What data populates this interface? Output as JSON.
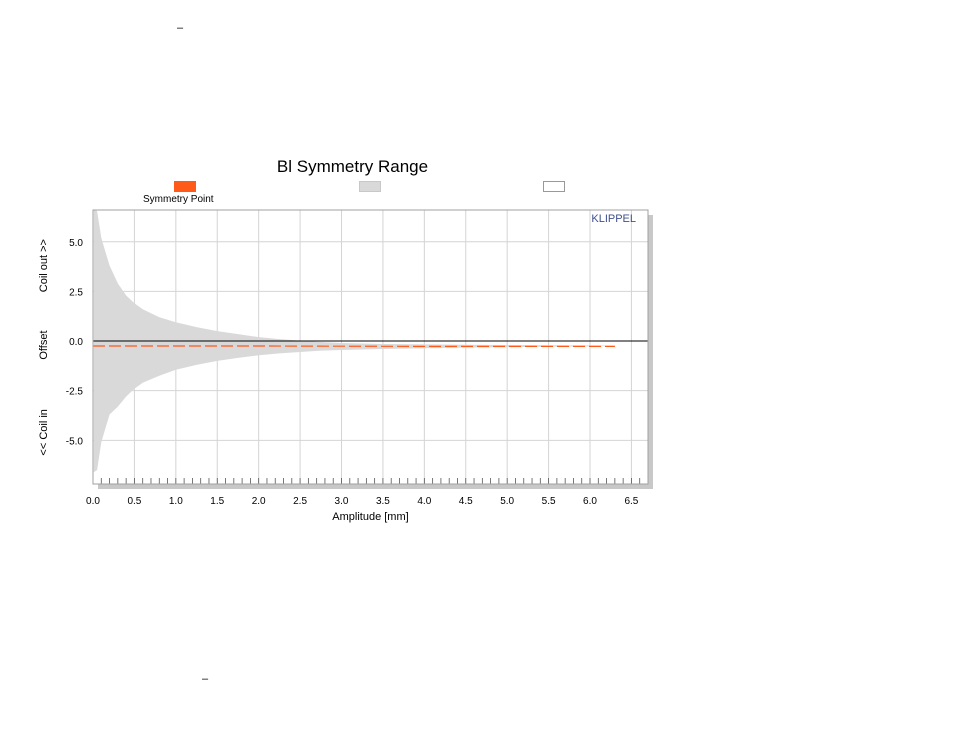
{
  "page": {
    "top_dash": "–",
    "bottom_dash": "–"
  },
  "chart_data": {
    "type": "area",
    "title": "Bl Symmetry Range",
    "xlabel": "Amplitude [mm]",
    "ylabel_parts": [
      "<< Coil in",
      "Offset",
      "Coil out >>"
    ],
    "watermark": "KLIPPEL",
    "xlim": [
      0.0,
      6.7
    ],
    "ylim": [
      -7.2,
      6.6
    ],
    "x_ticks": [
      0.0,
      0.5,
      1.0,
      1.5,
      2.0,
      2.5,
      3.0,
      3.5,
      4.0,
      4.5,
      5.0,
      5.5,
      6.0,
      6.5
    ],
    "x_tick_labels": [
      "0.0",
      "0.5",
      "1.0",
      "1.5",
      "2.0",
      "2.5",
      "3.0",
      "3.5",
      "4.0",
      "4.5",
      "5.0",
      "5.5",
      "6.0",
      "6.5"
    ],
    "y_ticks": [
      5.0,
      2.5,
      0.0,
      -2.5,
      -5.0
    ],
    "y_tick_labels": [
      "5.0",
      "2.5",
      "0.0",
      "-2.5",
      "-5.0"
    ],
    "grid": true,
    "legend": {
      "placement": "top",
      "entries": [
        {
          "label": "Symmetry Point",
          "color": "#ff5a1a",
          "border": "#ff5a1a"
        },
        {
          "label": "",
          "color": "#d9d9d9",
          "border": "#c8c8c8"
        },
        {
          "label": "",
          "color": "#ffffff",
          "border": "#999999"
        }
      ]
    },
    "range_upper": {
      "x": [
        0.01,
        0.05,
        0.1,
        0.15,
        0.2,
        0.3,
        0.4,
        0.5,
        0.6,
        0.8,
        1.0,
        1.25,
        1.5,
        1.75,
        2.0,
        2.25,
        2.5,
        2.75,
        3.0,
        3.5,
        4.0,
        4.5,
        5.0,
        5.5,
        6.0,
        6.3
      ],
      "y": [
        6.6,
        6.55,
        5.2,
        4.5,
        3.8,
        2.9,
        2.3,
        1.9,
        1.6,
        1.2,
        0.95,
        0.7,
        0.5,
        0.35,
        0.2,
        0.1,
        0.02,
        -0.05,
        -0.1,
        -0.15,
        -0.17,
        -0.19,
        -0.2,
        -0.21,
        -0.22,
        -0.23
      ]
    },
    "range_lower": {
      "x": [
        0.01,
        0.05,
        0.1,
        0.15,
        0.2,
        0.3,
        0.4,
        0.5,
        0.6,
        0.8,
        1.0,
        1.25,
        1.5,
        1.75,
        2.0,
        2.25,
        2.5,
        2.75,
        3.0,
        3.5,
        4.0,
        4.5,
        5.0,
        5.5,
        6.0,
        6.3
      ],
      "y": [
        -6.6,
        -6.5,
        -5.1,
        -4.4,
        -3.7,
        -3.3,
        -2.8,
        -2.4,
        -2.1,
        -1.75,
        -1.45,
        -1.2,
        -1.0,
        -0.85,
        -0.72,
        -0.62,
        -0.55,
        -0.48,
        -0.45,
        -0.4,
        -0.36,
        -0.33,
        -0.31,
        -0.29,
        -0.27,
        -0.25
      ]
    },
    "symmetry_point": {
      "x": [
        0.0,
        1.0,
        2.0,
        3.0,
        4.0,
        5.0,
        6.0,
        6.3
      ],
      "y": [
        -0.25,
        -0.25,
        -0.25,
        -0.26,
        -0.27,
        -0.27,
        -0.27,
        -0.27
      ],
      "color": "#ff5a1a"
    },
    "zero_line": 0.0
  }
}
